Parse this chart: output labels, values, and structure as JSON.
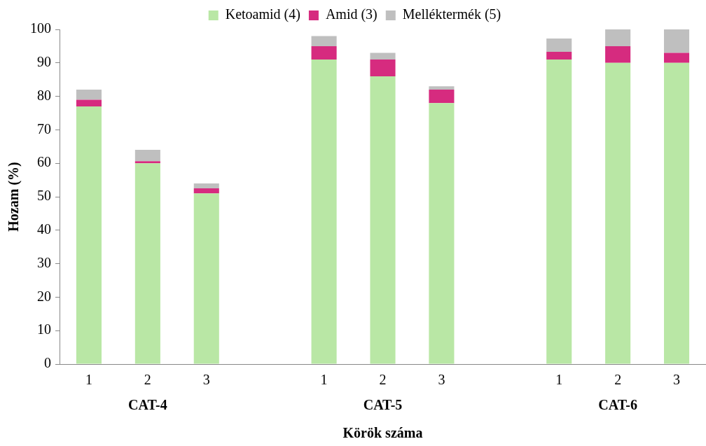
{
  "chart_data": {
    "type": "bar",
    "stacked": true,
    "xlabel": "Körök száma",
    "ylabel": "Hozam (%)",
    "categories": [
      "1",
      "2",
      "3",
      null,
      "1",
      "2",
      "3",
      null,
      "1",
      "2",
      "3"
    ],
    "series": [
      {
        "name": "Ketoamid (4)",
        "color": "#b9e7a5",
        "values": [
          77,
          60,
          51,
          null,
          91,
          86,
          78,
          null,
          91,
          90,
          90
        ]
      },
      {
        "name": "Amid (3)",
        "color": "#d62b7f",
        "values": [
          2,
          0.6,
          1.5,
          null,
          4,
          5,
          4,
          null,
          2.3,
          5,
          3
        ]
      },
      {
        "name": "Melléktermék (5)",
        "color": "#bfbfbf",
        "values": [
          3,
          3.4,
          1.5,
          null,
          3,
          2,
          1,
          null,
          4,
          5,
          7
        ]
      }
    ],
    "ylim": [
      0,
      100
    ],
    "yticks": [
      0,
      10,
      20,
      30,
      40,
      50,
      60,
      70,
      80,
      90,
      100
    ],
    "grid": false,
    "legend": "top",
    "annotations": [
      "CAT-4",
      "CAT-5",
      "CAT-6"
    ]
  }
}
